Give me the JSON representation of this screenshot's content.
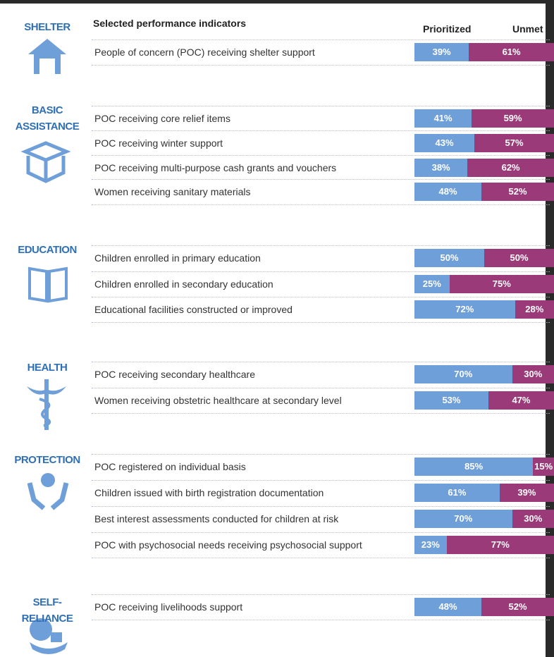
{
  "header": {
    "indicators_title": "Selected performance indicators",
    "series": [
      {
        "name": "Prioritized",
        "color": "#6f9fd8"
      },
      {
        "name": "Unmet",
        "color": "#9a3a78"
      }
    ]
  },
  "sections": [
    {
      "title": "SHELTER",
      "rows": [
        {
          "label": "People of concern (POC) receiving shelter support",
          "values": [
            39,
            61
          ],
          "value_labels": [
            "39%",
            "61%"
          ]
        }
      ]
    },
    {
      "title": "BASIC ASSISTANCE",
      "rows": [
        {
          "label": "POC receiving core relief items",
          "values": [
            41,
            59
          ],
          "value_labels": [
            "41%",
            "59%"
          ]
        },
        {
          "label": "POC receiving winter support",
          "values": [
            43,
            57
          ],
          "value_labels": [
            "43%",
            "57%"
          ]
        },
        {
          "label": "POC receiving multi-purpose cash grants and vouchers",
          "values": [
            38,
            62
          ],
          "value_labels": [
            "38%",
            "62%"
          ]
        },
        {
          "label": "Women receiving sanitary materials",
          "values": [
            48,
            52
          ],
          "value_labels": [
            "48%",
            "52%"
          ]
        }
      ]
    },
    {
      "title": "EDUCATION",
      "rows": [
        {
          "label": "Children enrolled in primary education",
          "values": [
            50,
            50
          ],
          "value_labels": [
            "50%",
            "50%"
          ]
        },
        {
          "label": "Children enrolled in secondary education",
          "values": [
            25,
            75
          ],
          "value_labels": [
            "25%",
            "75%"
          ]
        },
        {
          "label": "Educational facilities constructed or improved",
          "values": [
            72,
            28
          ],
          "value_labels": [
            "72%",
            "28%"
          ]
        }
      ]
    },
    {
      "title": "HEALTH",
      "rows": [
        {
          "label": "POC receiving secondary healthcare",
          "values": [
            70,
            30
          ],
          "value_labels": [
            "70%",
            "30%"
          ]
        },
        {
          "label": "Women receiving obstetric healthcare at secondary level",
          "values": [
            53,
            47
          ],
          "value_labels": [
            "53%",
            "47%"
          ]
        }
      ]
    },
    {
      "title": "PROTECTION",
      "rows": [
        {
          "label": "POC registered on individual basis",
          "values": [
            85,
            15
          ],
          "value_labels": [
            "85%",
            "15%"
          ]
        },
        {
          "label": "Children issued with birth registration documentation",
          "values": [
            61,
            39
          ],
          "value_labels": [
            "61%",
            "39%"
          ]
        },
        {
          "label": "Best interest assessments conducted for children at risk",
          "values": [
            70,
            30
          ],
          "value_labels": [
            "70%",
            "30%"
          ]
        },
        {
          "label": "POC with psychosocial needs receiving psychosocial support",
          "values": [
            23,
            77
          ],
          "value_labels": [
            "23%",
            "77%"
          ]
        }
      ]
    },
    {
      "title": "SELF-RELIANCE",
      "rows": [
        {
          "label": "POC receiving livelihoods support",
          "values": [
            48,
            52
          ],
          "value_labels": [
            "48%",
            "52%"
          ]
        }
      ]
    }
  ]
}
